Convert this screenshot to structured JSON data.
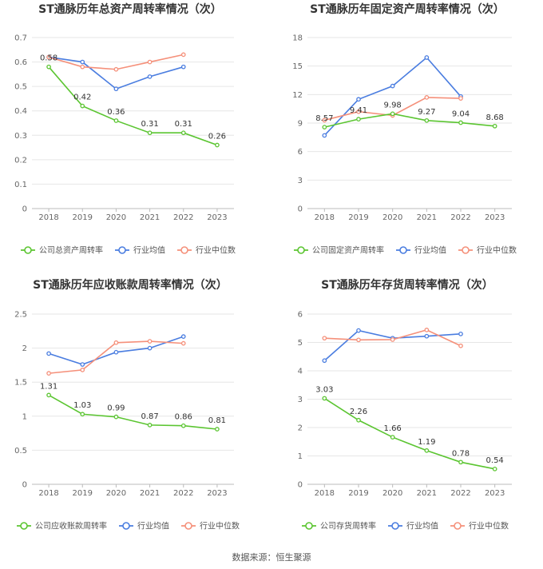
{
  "source": "数据来源：恒生聚源",
  "colors": {
    "company": "#5bc531",
    "avg": "#4a7de0",
    "median": "#f5907a",
    "grid": "#e6e6e6",
    "axis": "#bbbbbb"
  },
  "chart_data": [
    {
      "type": "line",
      "title": "ST通脉历年总资产周转率情况（次）",
      "categories": [
        "2018",
        "2019",
        "2020",
        "2021",
        "2022",
        "2023"
      ],
      "ylim": [
        0,
        0.7
      ],
      "yticks": [
        0,
        0.1,
        0.2,
        0.3,
        0.4,
        0.5,
        0.6,
        0.7
      ],
      "series": [
        {
          "name": "公司总资产周转率",
          "role": "company",
          "values": [
            0.58,
            0.42,
            0.36,
            0.31,
            0.31,
            0.26
          ],
          "labels": [
            "0.58",
            "0.42",
            "0.36",
            "0.31",
            "0.31",
            "0.26"
          ]
        },
        {
          "name": "行业均值",
          "role": "avg",
          "values": [
            0.62,
            0.6,
            0.49,
            0.54,
            0.58,
            null
          ]
        },
        {
          "name": "行业中位数",
          "role": "median",
          "values": [
            0.62,
            0.58,
            0.57,
            0.6,
            0.63,
            null
          ]
        }
      ]
    },
    {
      "type": "line",
      "title": "ST通脉历年固定资产周转率情况（次）",
      "categories": [
        "2018",
        "2019",
        "2020",
        "2021",
        "2022",
        "2023"
      ],
      "ylim": [
        0,
        18
      ],
      "yticks": [
        0,
        3,
        6,
        9,
        12,
        15,
        18
      ],
      "series": [
        {
          "name": "公司固定资产周转率",
          "role": "company",
          "values": [
            8.57,
            9.41,
            9.98,
            9.27,
            9.04,
            8.68
          ],
          "labels": [
            "8.57",
            "9.41",
            "9.98",
            "9.27",
            "9.04",
            "8.68"
          ]
        },
        {
          "name": "行业均值",
          "role": "avg",
          "values": [
            7.7,
            11.5,
            12.9,
            15.9,
            11.8,
            null
          ]
        },
        {
          "name": "行业中位数",
          "role": "median",
          "values": [
            9.3,
            10.2,
            9.8,
            11.7,
            11.6,
            null
          ]
        }
      ]
    },
    {
      "type": "line",
      "title": "ST通脉历年应收账款周转率情况（次）",
      "categories": [
        "2018",
        "2019",
        "2020",
        "2021",
        "2022",
        "2023"
      ],
      "ylim": [
        0,
        2.5
      ],
      "yticks": [
        0,
        0.5,
        1,
        1.5,
        2,
        2.5
      ],
      "series": [
        {
          "name": "公司应收账款周转率",
          "role": "company",
          "values": [
            1.31,
            1.03,
            0.99,
            0.87,
            0.86,
            0.81
          ],
          "labels": [
            "1.31",
            "1.03",
            "0.99",
            "0.87",
            "0.86",
            "0.81"
          ]
        },
        {
          "name": "行业均值",
          "role": "avg",
          "values": [
            1.92,
            1.76,
            1.94,
            2.0,
            2.17,
            null
          ]
        },
        {
          "name": "行业中位数",
          "role": "median",
          "values": [
            1.63,
            1.68,
            2.08,
            2.1,
            2.07,
            null
          ]
        }
      ]
    },
    {
      "type": "line",
      "title": "ST通脉历年存货周转率情况（次）",
      "categories": [
        "2018",
        "2019",
        "2020",
        "2021",
        "2022",
        "2023"
      ],
      "ylim": [
        0,
        6
      ],
      "yticks": [
        0,
        1,
        2,
        3,
        4,
        5,
        6
      ],
      "series": [
        {
          "name": "公司存货周转率",
          "role": "company",
          "values": [
            3.03,
            2.26,
            1.66,
            1.19,
            0.78,
            0.54
          ],
          "labels": [
            "3.03",
            "2.26",
            "1.66",
            "1.19",
            "0.78",
            "0.54"
          ]
        },
        {
          "name": "行业均值",
          "role": "avg",
          "values": [
            4.36,
            5.42,
            5.15,
            5.22,
            5.3,
            null
          ]
        },
        {
          "name": "行业中位数",
          "role": "median",
          "values": [
            5.15,
            5.09,
            5.1,
            5.44,
            4.88,
            null
          ]
        }
      ]
    }
  ]
}
